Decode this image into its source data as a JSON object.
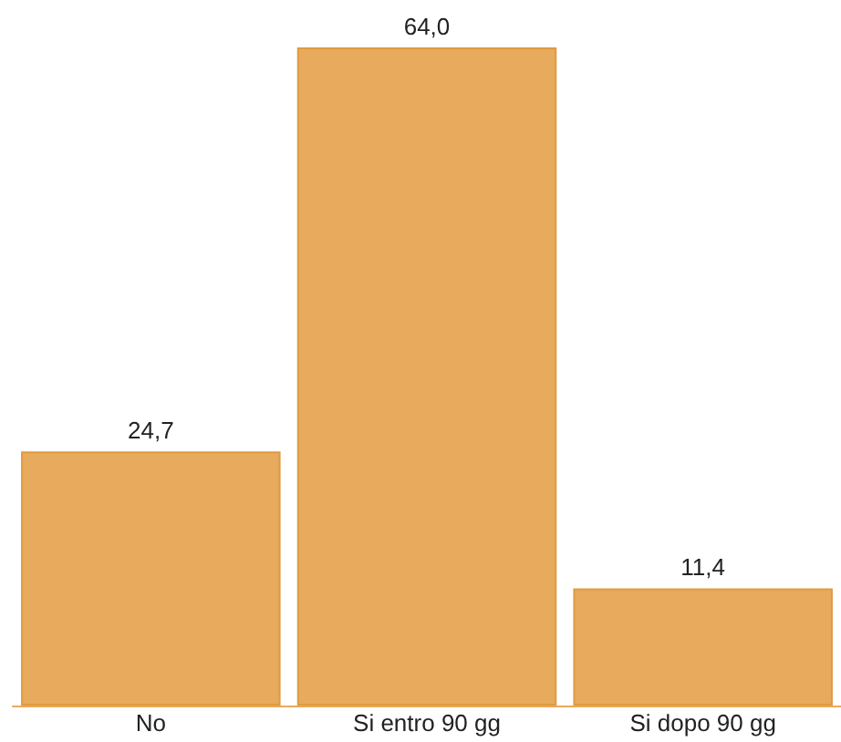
{
  "chart_data": {
    "type": "bar",
    "categories": [
      "No",
      "Si entro 90 gg",
      "Si dopo 90 gg"
    ],
    "values": [
      24.7,
      64.0,
      11.4
    ],
    "value_labels": [
      "24,7",
      "64,0",
      "11,4"
    ],
    "color": "#e8aa5c",
    "grid": false,
    "tick_labels": "x"
  }
}
